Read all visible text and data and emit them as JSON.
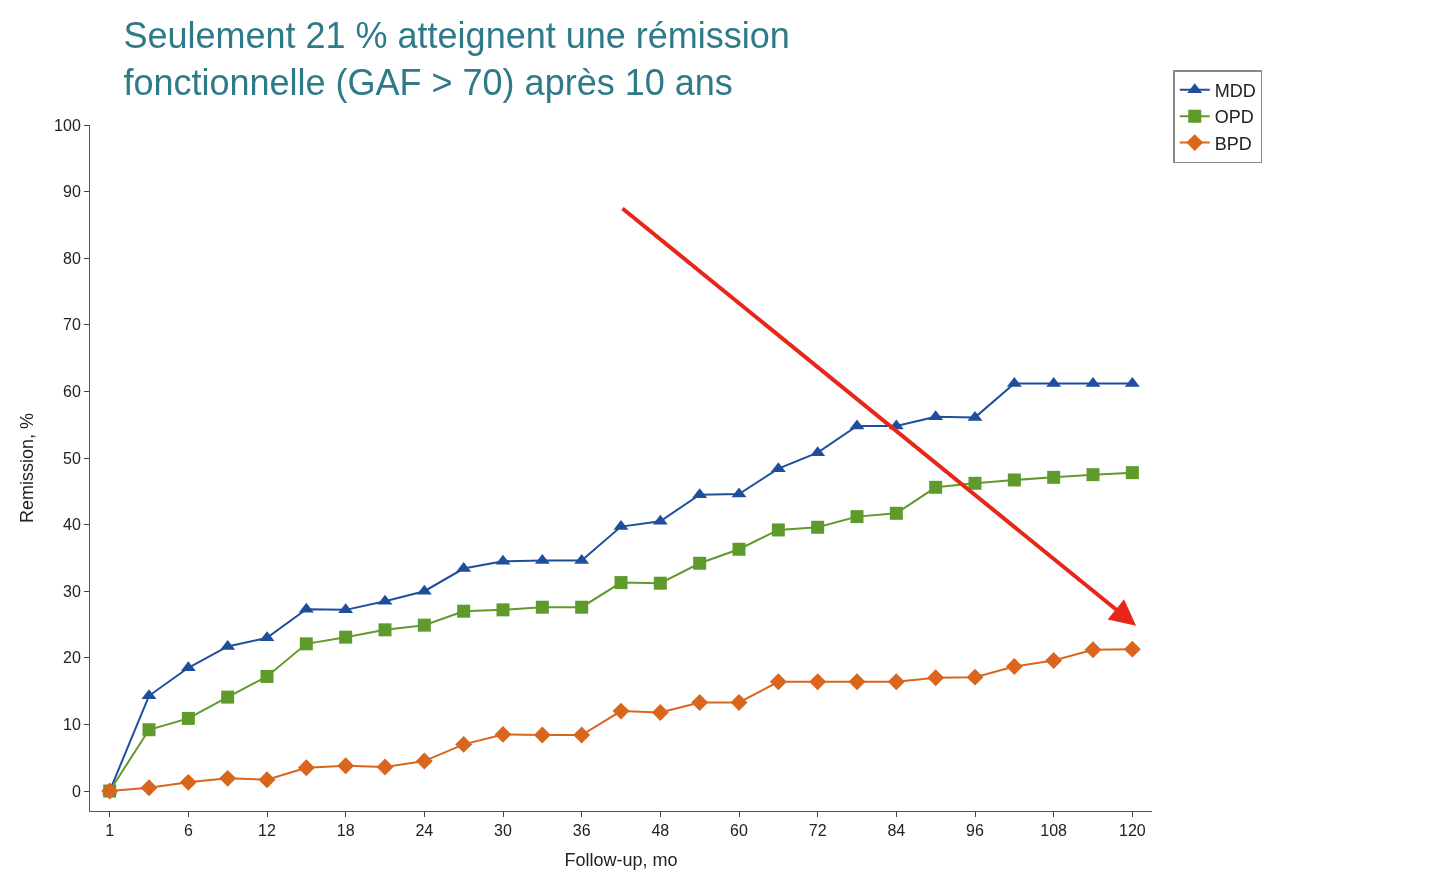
{
  "chart_data": {
    "type": "line",
    "title": "Seulement 21 % atteignent une rémission\nfonctionnelle (GAF > 70) après 10 ans",
    "xlabel": "Follow-up, mo",
    "ylabel": "Remission, %",
    "categories": [
      "1",
      null,
      "6",
      null,
      "12",
      null,
      "18",
      null,
      "24",
      null,
      "30",
      null,
      "36",
      null,
      "48",
      null,
      "60",
      null,
      "72",
      null,
      "84",
      null,
      "96",
      null,
      "108",
      null,
      "120"
    ],
    "series": [
      {
        "name": "MDD",
        "color": "#1f4e9c",
        "marker": "triangle",
        "values": [
          0,
          14.3,
          18.5,
          21.7,
          23,
          27.3,
          27.2,
          28.5,
          30,
          33.4,
          34.5,
          34.6,
          34.6,
          39.7,
          40.5,
          44.5,
          44.6,
          48.4,
          50.8,
          54.8,
          54.8,
          56.2,
          56.1,
          61.2,
          61.2,
          61.2,
          61.2
        ]
      },
      {
        "name": "OPD",
        "color": "#5f9a2c",
        "marker": "square",
        "values": [
          0,
          9.2,
          10.9,
          14.1,
          17.2,
          22.1,
          23.1,
          24.2,
          24.9,
          27,
          27.2,
          27.6,
          27.6,
          31.3,
          31.2,
          34.2,
          36.3,
          39.2,
          39.6,
          41.2,
          41.7,
          45.6,
          46.2,
          46.7,
          47.1,
          47.5,
          47.8
        ]
      },
      {
        "name": "BPD",
        "color": "#d9661c",
        "marker": "diamond",
        "values": [
          0,
          0.5,
          1.3,
          1.9,
          1.7,
          3.5,
          3.8,
          3.6,
          4.5,
          7,
          8.5,
          8.4,
          8.4,
          12,
          11.8,
          13.3,
          13.3,
          16.4,
          16.4,
          16.4,
          16.4,
          17,
          17.1,
          18.7,
          19.6,
          21.2,
          21.3
        ]
      }
    ],
    "ylim": [
      -3,
      100
    ],
    "yticks": [
      0,
      10,
      20,
      30,
      40,
      50,
      60,
      70,
      80,
      90,
      100
    ],
    "legend": "top right",
    "line_style": "solid"
  }
}
